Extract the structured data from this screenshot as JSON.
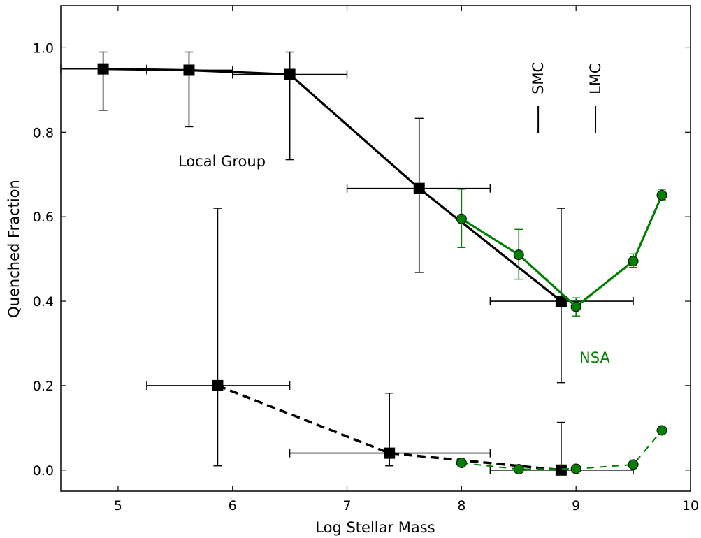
{
  "chart_data": {
    "type": "line",
    "xlabel": "Log Stellar Mass",
    "ylabel": "Quenched Fraction",
    "xlim": [
      4.5,
      10
    ],
    "ylim": [
      -0.05,
      1.1
    ],
    "x_ticks": [
      "5",
      "6",
      "7",
      "8",
      "9",
      "10"
    ],
    "y_ticks": [
      "0.0",
      "0.2",
      "0.4",
      "0.6",
      "0.8",
      "1.0"
    ],
    "grid": false,
    "annotations": {
      "local_group": "Local Group",
      "nsa": "NSA",
      "smc": "SMC",
      "lmc": "LMC",
      "smc_mass": 8.67,
      "lmc_mass": 9.17
    },
    "colors": {
      "local_group": "#000000",
      "nsa": "#008000"
    },
    "series": [
      {
        "group": "local_group",
        "style": "solid",
        "points": [
          {
            "x": 4.87,
            "y": 0.95,
            "xlo": 4.5,
            "xhi": 5.25,
            "ylo": 0.852,
            "yhi": 0.99
          },
          {
            "x": 5.62,
            "y": 0.947,
            "xlo": 5.25,
            "xhi": 6.0,
            "ylo": 0.813,
            "yhi": 0.99
          },
          {
            "x": 6.5,
            "y": 0.937,
            "xlo": 6.0,
            "xhi": 7.0,
            "ylo": 0.735,
            "yhi": 0.99
          },
          {
            "x": 7.63,
            "y": 0.667,
            "xlo": 7.0,
            "xhi": 8.25,
            "ylo": 0.468,
            "yhi": 0.833
          },
          {
            "x": 8.87,
            "y": 0.4,
            "xlo": 8.25,
            "xhi": 9.5,
            "ylo": 0.207,
            "yhi": 0.62
          }
        ]
      },
      {
        "group": "local_group",
        "style": "dashed",
        "points": [
          {
            "x": 5.87,
            "y": 0.2,
            "xlo": 5.25,
            "xhi": 6.5,
            "ylo": 0.01,
            "yhi": 0.62
          },
          {
            "x": 7.37,
            "y": 0.04,
            "xlo": 6.5,
            "xhi": 8.25,
            "ylo": 0.01,
            "yhi": 0.182
          },
          {
            "x": 8.87,
            "y": 0.0,
            "xlo": 8.25,
            "xhi": 9.5,
            "ylo": 0.0,
            "yhi": 0.113
          }
        ]
      },
      {
        "group": "nsa",
        "style": "solid",
        "points": [
          {
            "x": 8.0,
            "y": 0.595,
            "ylo": 0.527,
            "yhi": 0.665
          },
          {
            "x": 8.5,
            "y": 0.51,
            "ylo": 0.452,
            "yhi": 0.57
          },
          {
            "x": 9.0,
            "y": 0.387,
            "ylo": 0.365,
            "yhi": 0.408
          },
          {
            "x": 9.5,
            "y": 0.495,
            "ylo": 0.48,
            "yhi": 0.512
          },
          {
            "x": 9.75,
            "y": 0.651,
            "ylo": 0.64,
            "yhi": 0.665
          }
        ]
      },
      {
        "group": "nsa",
        "style": "dashed",
        "points": [
          {
            "x": 8.0,
            "y": 0.017
          },
          {
            "x": 8.5,
            "y": 0.002
          },
          {
            "x": 9.0,
            "y": 0.003
          },
          {
            "x": 9.5,
            "y": 0.013
          },
          {
            "x": 9.75,
            "y": 0.094
          }
        ]
      }
    ]
  }
}
